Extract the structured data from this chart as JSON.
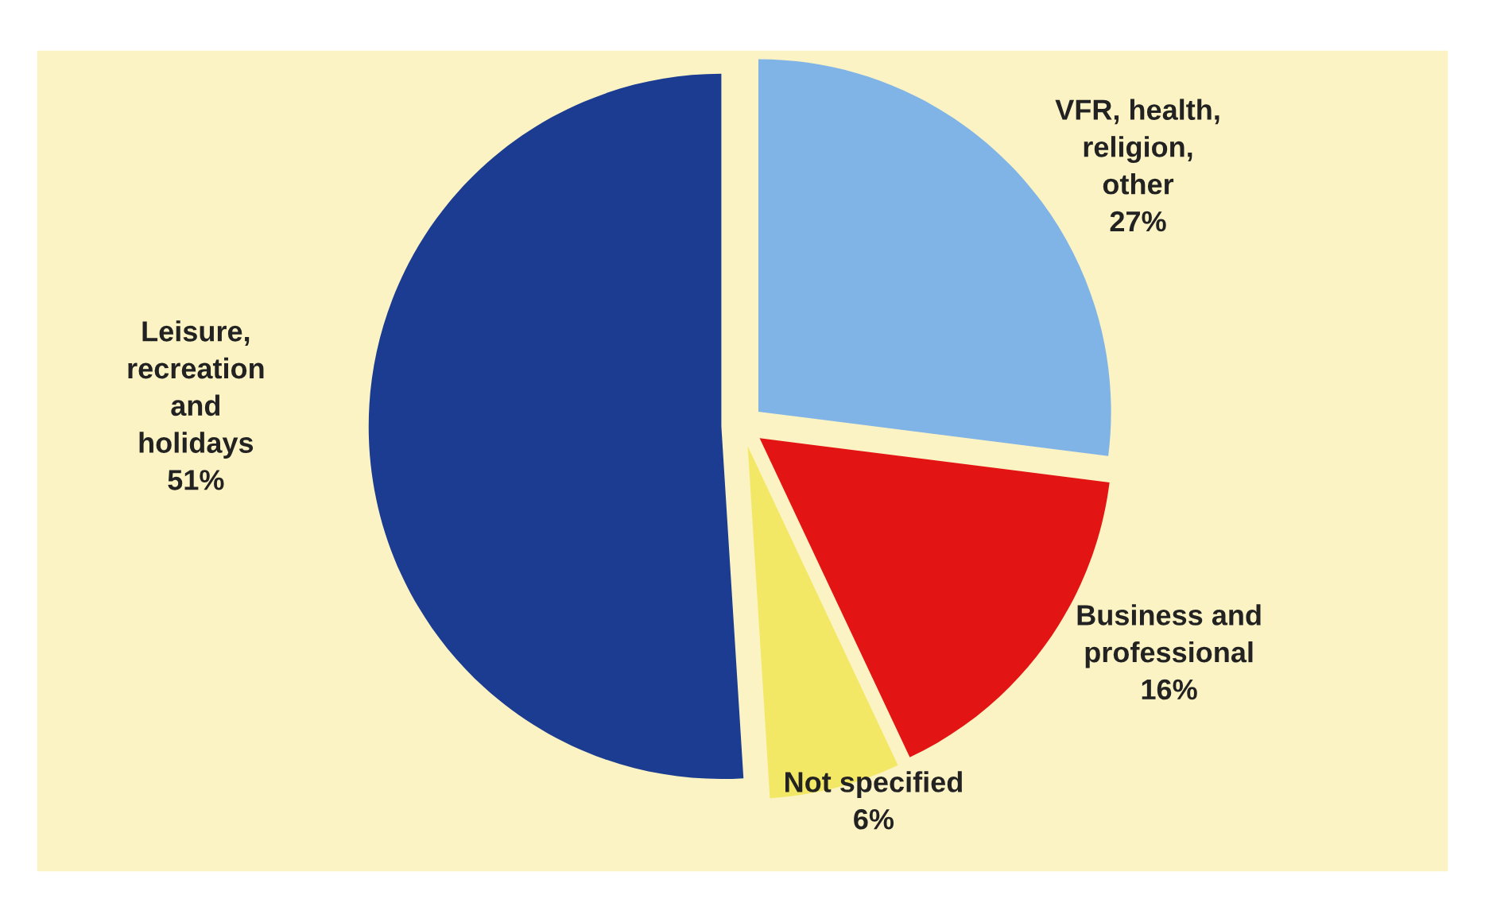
{
  "chart_data": {
    "type": "pie",
    "categories": [
      "Leisure,\nrecreation\nand\nholidays",
      "Not specified",
      "Business and\nprofessional",
      "VFR, health,\nreligion,\nother"
    ],
    "values": [
      51,
      6,
      16,
      27
    ],
    "value_labels": [
      "51%",
      "6%",
      "16%",
      "27%"
    ],
    "colors": [
      "#1b3c90",
      "#f2e865",
      "#e31414",
      "#80b4e6"
    ],
    "legend": false
  }
}
